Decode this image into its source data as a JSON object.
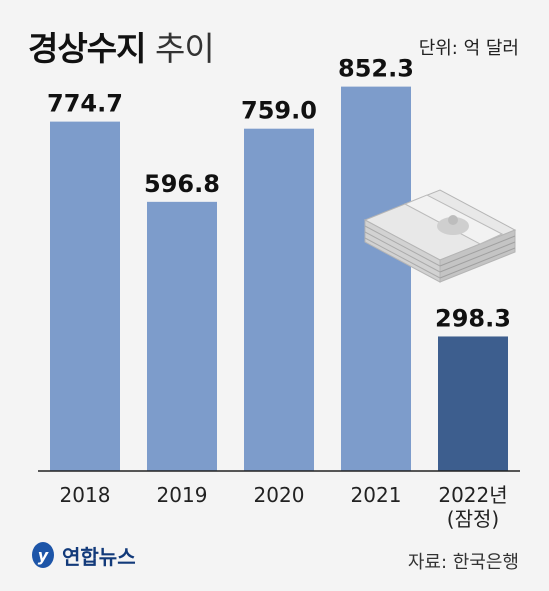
{
  "header": {
    "title_bold": "경상수지",
    "title_light": "추이",
    "unit": "단위: 억 달러"
  },
  "footer": {
    "logo": "연합뉴스",
    "source": "자료: 한국은행"
  },
  "colors": {
    "bar": "#7d9ccb",
    "bar_highlight": "#3d5e8e",
    "axis": "#222222"
  },
  "chart_data": {
    "type": "bar",
    "title": "경상수지 추이",
    "ylabel": "단위: 억 달러",
    "categories": [
      "2018",
      "2019",
      "2020",
      "2021",
      "2022년\n(잠정)"
    ],
    "values": [
      774.7,
      596.8,
      759.0,
      852.3,
      298.3
    ],
    "value_labels": [
      "774.7",
      "596.8",
      "759.0",
      "852.3",
      "298.3"
    ],
    "highlight_index": 4,
    "ylim": [
      0,
      1000
    ],
    "grid": false,
    "legend": "none"
  }
}
